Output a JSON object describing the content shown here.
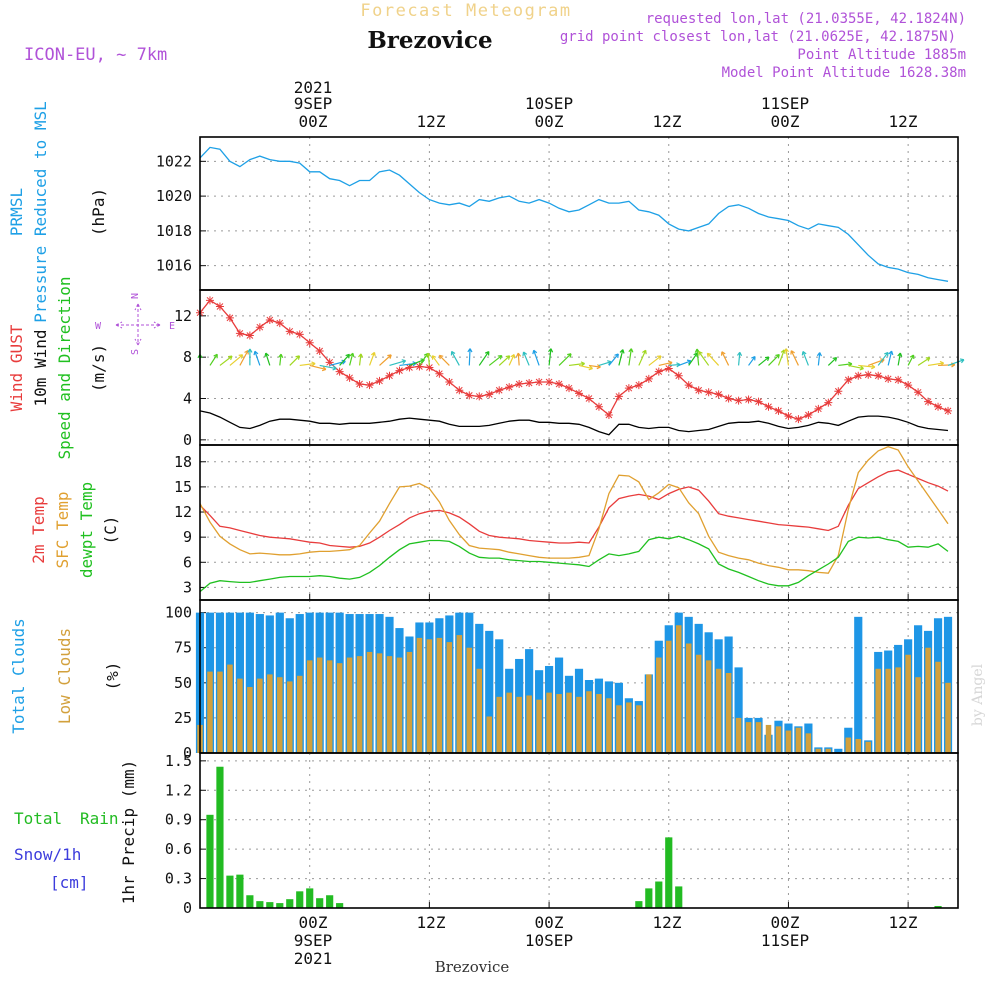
{
  "header": {
    "title_faint": "Forecast Meteogram",
    "location": "Brezovice",
    "model": "ICON-EU, ~ 7km",
    "requested": "requested lon,lat (21.0355E, 42.1824N)",
    "gridpoint": "grid point closest lon,lat (21.0625E, 42.1875N)",
    "point_alt": "Point Altitude 1885m",
    "model_alt": "Model Point Altitude 1628.38m",
    "watermark": "by Angel",
    "footer": "Brezovice"
  },
  "time_axis": {
    "ticks": [
      {
        "t": 0,
        "top": [
          "2021",
          "9SEP",
          "00Z"
        ],
        "bottom": [
          "00Z",
          "9SEP",
          "2021"
        ]
      },
      {
        "t": 12,
        "top": [
          "12Z"
        ],
        "bottom": [
          "12Z"
        ]
      },
      {
        "t": 24,
        "top": [
          "10SEP",
          "00Z"
        ],
        "bottom": [
          "00Z",
          "10SEP"
        ]
      },
      {
        "t": 36,
        "top": [
          "12Z"
        ],
        "bottom": [
          "12Z"
        ]
      },
      {
        "t": 48,
        "top": [
          "11SEP",
          "00Z"
        ],
        "bottom": [
          "00Z",
          "11SEP"
        ]
      },
      {
        "t": 60,
        "top": [
          "12Z"
        ],
        "bottom": [
          "12Z"
        ]
      }
    ]
  },
  "panels": [
    {
      "key": "pressure",
      "yticks": [
        "1022",
        "1020",
        "1018",
        "1016"
      ],
      "labels": [
        "PRMSL",
        "Pressure Reduced to MSL",
        "(hPa)"
      ]
    },
    {
      "key": "wind",
      "yticks": [
        "12",
        "8",
        "4",
        "0"
      ],
      "labels": [
        "Wind GUST",
        "10m Wind",
        "Speed and Direction",
        "(m/s)"
      ],
      "compass": {
        "n": "N",
        "s": "S",
        "w": "W",
        "e": "E"
      }
    },
    {
      "key": "temp",
      "yticks": [
        "18",
        "15",
        "12",
        "9",
        "6",
        "3"
      ],
      "labels": [
        "2m Temp",
        "SFC Temp",
        "dewpt Temp",
        "(C)"
      ]
    },
    {
      "key": "clouds",
      "yticks": [
        "100",
        "75",
        "50",
        "25",
        "0"
      ],
      "labels": [
        "Total Clouds",
        "Low Clouds",
        "(%)"
      ]
    },
    {
      "key": "precip",
      "yticks": [
        "1.5",
        "1.2",
        "0.9",
        "0.6",
        "0.3",
        "0"
      ],
      "labels": [
        "Total",
        "Rain",
        "Snow/1h",
        "[cm]",
        "1hr Precip (mm)"
      ]
    }
  ],
  "chart_data": [
    {
      "type": "line",
      "title": "PRMSL Pressure Reduced to MSL",
      "ylabel": "(hPa)",
      "ylim": [
        1014.6,
        1023.4
      ],
      "xlim": [
        -11,
        65
      ],
      "x": [
        -11,
        -10,
        -9,
        -8,
        -7,
        -6,
        -5,
        -4,
        -3,
        -2,
        -1,
        0,
        1,
        2,
        3,
        4,
        5,
        6,
        7,
        8,
        9,
        10,
        11,
        12,
        13,
        14,
        15,
        16,
        17,
        18,
        19,
        20,
        21,
        22,
        23,
        24,
        25,
        26,
        27,
        28,
        29,
        30,
        31,
        32,
        33,
        34,
        35,
        36,
        37,
        38,
        39,
        40,
        41,
        42,
        43,
        44,
        45,
        46,
        47,
        48,
        49,
        50,
        51,
        52,
        53,
        54,
        55,
        56,
        57,
        58,
        59,
        60,
        61,
        62,
        63,
        64
      ],
      "series": [
        {
          "name": "PRMSL",
          "color": "#1ea0e6",
          "values": [
            1022.2,
            1022.8,
            1022.7,
            1022.0,
            1021.7,
            1022.1,
            1022.3,
            1022.1,
            1022.0,
            1022.0,
            1021.9,
            1021.4,
            1021.4,
            1021.0,
            1020.9,
            1020.6,
            1020.9,
            1020.9,
            1021.4,
            1021.5,
            1021.2,
            1020.7,
            1020.2,
            1019.8,
            1019.6,
            1019.5,
            1019.6,
            1019.4,
            1019.8,
            1019.7,
            1019.9,
            1020.0,
            1019.7,
            1019.6,
            1019.8,
            1019.6,
            1019.3,
            1019.1,
            1019.2,
            1019.5,
            1019.8,
            1019.6,
            1019.6,
            1019.7,
            1019.2,
            1019.1,
            1018.9,
            1018.4,
            1018.1,
            1018.0,
            1018.2,
            1018.4,
            1019.0,
            1019.4,
            1019.5,
            1019.3,
            1019.0,
            1018.8,
            1018.7,
            1018.6,
            1018.3,
            1018.1,
            1018.4,
            1018.3,
            1018.2,
            1017.8,
            1017.2,
            1016.6,
            1016.1,
            1015.9,
            1015.8,
            1015.6,
            1015.5,
            1015.3,
            1015.2,
            1015.1
          ]
        }
      ]
    },
    {
      "type": "line",
      "title": "Wind GUST / 10m Wind Speed and Direction",
      "ylabel": "(m/s)",
      "ylim": [
        -0.5,
        14.5
      ],
      "xlim": [
        -11,
        65
      ],
      "x": [
        -11,
        -10,
        -9,
        -8,
        -7,
        -6,
        -5,
        -4,
        -3,
        -2,
        -1,
        0,
        1,
        2,
        3,
        4,
        5,
        6,
        7,
        8,
        9,
        10,
        11,
        12,
        13,
        14,
        15,
        16,
        17,
        18,
        19,
        20,
        21,
        22,
        23,
        24,
        25,
        26,
        27,
        28,
        29,
        30,
        31,
        32,
        33,
        34,
        35,
        36,
        37,
        38,
        39,
        40,
        41,
        42,
        43,
        44,
        45,
        46,
        47,
        48,
        49,
        50,
        51,
        52,
        53,
        54,
        55,
        56,
        57,
        58,
        59,
        60,
        61,
        62,
        63,
        64
      ],
      "series": [
        {
          "name": "Wind GUST",
          "color": "#e83c3c",
          "values": [
            12.3,
            13.5,
            12.9,
            11.8,
            10.3,
            10.1,
            10.9,
            11.6,
            11.3,
            10.5,
            10.2,
            9.4,
            8.6,
            7.5,
            6.6,
            6.0,
            5.4,
            5.3,
            5.7,
            6.2,
            6.7,
            7.0,
            7.1,
            7.0,
            6.4,
            5.6,
            4.8,
            4.3,
            4.2,
            4.4,
            4.8,
            5.1,
            5.4,
            5.5,
            5.6,
            5.6,
            5.4,
            5.0,
            4.5,
            4.0,
            3.2,
            2.4,
            4.2,
            5.0,
            5.3,
            5.9,
            6.6,
            6.9,
            6.2,
            5.3,
            4.8,
            4.6,
            4.4,
            4.0,
            3.8,
            3.9,
            3.7,
            3.2,
            2.8,
            2.3,
            2.0,
            2.4,
            3.0,
            3.6,
            4.7,
            5.8,
            6.2,
            6.3,
            6.2,
            5.9,
            5.8,
            5.3,
            4.6,
            3.7,
            3.2,
            2.8
          ]
        },
        {
          "name": "10m Wind",
          "color": "#000000",
          "values": [
            2.8,
            2.6,
            2.2,
            1.7,
            1.2,
            1.1,
            1.4,
            1.8,
            2.0,
            2.0,
            1.9,
            1.8,
            1.6,
            1.6,
            1.5,
            1.6,
            1.6,
            1.6,
            1.7,
            1.8,
            2.0,
            2.1,
            2.0,
            1.9,
            1.8,
            1.5,
            1.3,
            1.3,
            1.3,
            1.4,
            1.6,
            1.8,
            1.9,
            1.9,
            1.7,
            1.7,
            1.6,
            1.6,
            1.5,
            1.2,
            0.8,
            0.5,
            1.5,
            1.5,
            1.2,
            1.1,
            1.2,
            1.2,
            0.9,
            0.8,
            0.9,
            1.0,
            1.3,
            1.6,
            1.7,
            1.7,
            1.8,
            1.6,
            1.3,
            1.1,
            1.2,
            1.4,
            1.7,
            1.6,
            1.4,
            1.8,
            2.2,
            2.3,
            2.3,
            2.2,
            2.0,
            1.7,
            1.3,
            1.1,
            1.0,
            0.9
          ]
        }
      ]
    },
    {
      "type": "line",
      "title": "2m Temp / SFC Temp / dewpt Temp",
      "ylabel": "(C)",
      "ylim": [
        1.5,
        20
      ],
      "xlim": [
        -11,
        65
      ],
      "x": [
        -11,
        -10,
        -9,
        -8,
        -7,
        -6,
        -5,
        -4,
        -3,
        -2,
        -1,
        0,
        1,
        2,
        3,
        4,
        5,
        6,
        7,
        8,
        9,
        10,
        11,
        12,
        13,
        14,
        15,
        16,
        17,
        18,
        19,
        20,
        21,
        22,
        23,
        24,
        25,
        26,
        27,
        28,
        29,
        30,
        31,
        32,
        33,
        34,
        35,
        36,
        37,
        38,
        39,
        40,
        41,
        42,
        43,
        44,
        45,
        46,
        47,
        48,
        49,
        50,
        51,
        52,
        53,
        54,
        55,
        56,
        57,
        58,
        59,
        60,
        61,
        62,
        63,
        64
      ],
      "series": [
        {
          "name": "2m Temp",
          "color": "#e83c3c",
          "values": [
            12.8,
            11.6,
            10.3,
            10.1,
            9.8,
            9.5,
            9.2,
            9.0,
            8.9,
            8.8,
            8.6,
            8.4,
            8.3,
            8.0,
            7.9,
            7.8,
            7.9,
            8.3,
            9.0,
            9.8,
            10.5,
            11.3,
            11.8,
            12.1,
            12.2,
            11.9,
            11.4,
            10.6,
            9.7,
            9.2,
            9.0,
            8.9,
            8.8,
            8.6,
            8.5,
            8.4,
            8.3,
            8.3,
            8.4,
            8.3,
            10.2,
            12.5,
            13.6,
            13.9,
            14.1,
            13.9,
            13.5,
            14.2,
            14.7,
            15.0,
            14.6,
            13.3,
            11.8,
            11.5,
            11.3,
            11.1,
            10.9,
            10.7,
            10.5,
            10.4,
            10.3,
            10.2,
            10.0,
            9.8,
            10.3,
            12.8,
            14.8,
            15.5,
            16.2,
            16.8,
            17.0,
            16.5,
            16.0,
            15.5,
            15.1,
            14.5
          ]
        },
        {
          "name": "SFC Temp",
          "color": "#e0a030",
          "values": [
            13.0,
            10.8,
            9.1,
            8.2,
            7.5,
            7.0,
            7.1,
            7.0,
            6.9,
            6.9,
            7.0,
            7.2,
            7.3,
            7.3,
            7.4,
            7.5,
            8.0,
            9.5,
            10.9,
            13.0,
            15.0,
            15.1,
            15.4,
            14.8,
            13.2,
            11.0,
            9.3,
            8.0,
            7.7,
            7.6,
            7.5,
            7.2,
            7.0,
            6.8,
            6.6,
            6.5,
            6.5,
            6.5,
            6.6,
            6.8,
            10.0,
            14.2,
            16.4,
            16.3,
            15.6,
            13.5,
            14.3,
            15.3,
            14.9,
            13.1,
            11.8,
            9.1,
            7.2,
            6.8,
            6.5,
            6.3,
            5.9,
            5.6,
            5.4,
            5.1,
            5.1,
            5.0,
            4.8,
            4.7,
            6.8,
            12.3,
            16.7,
            18.2,
            19.3,
            19.8,
            19.4,
            17.4,
            15.7,
            14.0,
            12.3,
            10.6
          ]
        },
        {
          "name": "dewpt Temp",
          "color": "#20c020",
          "values": [
            2.5,
            3.5,
            3.8,
            3.7,
            3.6,
            3.6,
            3.8,
            4.0,
            4.2,
            4.3,
            4.3,
            4.3,
            4.4,
            4.3,
            4.1,
            4.0,
            4.2,
            4.8,
            5.6,
            6.6,
            7.5,
            8.2,
            8.4,
            8.6,
            8.6,
            8.5,
            7.9,
            7.1,
            6.6,
            6.5,
            6.5,
            6.3,
            6.2,
            6.1,
            6.1,
            6.0,
            5.9,
            5.8,
            5.7,
            5.5,
            6.3,
            7.0,
            6.8,
            7.0,
            7.3,
            8.7,
            9.0,
            8.8,
            9.1,
            8.7,
            8.2,
            7.6,
            5.8,
            5.2,
            4.8,
            4.3,
            3.8,
            3.4,
            3.2,
            3.2,
            3.6,
            4.4,
            5.1,
            5.8,
            6.6,
            8.5,
            9.0,
            8.9,
            9.0,
            8.7,
            8.5,
            7.8,
            7.9,
            7.8,
            8.2,
            7.3
          ]
        }
      ]
    },
    {
      "type": "bar",
      "title": "Total Clouds / Low Clouds",
      "ylabel": "(%)",
      "ylim": [
        0,
        109
      ],
      "xlim": [
        -11,
        65
      ],
      "x": [
        -11,
        -10,
        -9,
        -8,
        -7,
        -6,
        -5,
        -4,
        -3,
        -2,
        -1,
        0,
        1,
        2,
        3,
        4,
        5,
        6,
        7,
        8,
        9,
        10,
        11,
        12,
        13,
        14,
        15,
        16,
        17,
        18,
        19,
        20,
        21,
        22,
        23,
        24,
        25,
        26,
        27,
        28,
        29,
        30,
        31,
        32,
        33,
        34,
        35,
        36,
        37,
        38,
        39,
        40,
        41,
        42,
        43,
        44,
        45,
        46,
        47,
        48,
        49,
        50,
        51,
        52,
        53,
        54,
        55,
        56,
        57,
        58,
        59,
        60,
        61,
        62,
        63,
        64
      ],
      "series": [
        {
          "name": "Total Clouds",
          "color": "#1e96e6",
          "values": [
            100,
            100,
            100,
            100,
            100,
            100,
            99,
            98,
            100,
            96,
            99,
            100,
            100,
            100,
            100,
            99,
            99,
            99,
            99,
            97,
            89,
            83,
            93,
            93,
            96,
            98,
            100,
            100,
            92,
            87,
            81,
            60,
            67,
            74,
            59,
            62,
            68,
            55,
            60,
            52,
            53,
            51,
            50,
            39,
            37,
            56,
            80,
            91,
            100,
            97,
            92,
            86,
            81,
            83,
            61,
            25,
            25,
            13,
            23,
            21,
            19,
            21,
            4,
            4,
            3,
            18,
            97,
            9,
            72,
            73,
            77,
            81,
            91,
            87,
            96,
            97
          ]
        },
        {
          "name": "Low Clouds",
          "color": "#d2a03c",
          "values": [
            20,
            58,
            58,
            63,
            53,
            47,
            53,
            56,
            54,
            51,
            55,
            66,
            68,
            66,
            64,
            68,
            69,
            72,
            71,
            69,
            68,
            72,
            82,
            81,
            82,
            79,
            84,
            75,
            60,
            26,
            40,
            43,
            40,
            41,
            38,
            43,
            42,
            43,
            40,
            44,
            42,
            39,
            34,
            36,
            34,
            56,
            68,
            80,
            91,
            78,
            70,
            66,
            60,
            57,
            25,
            22,
            22,
            20,
            19,
            16,
            18,
            14,
            3,
            3,
            0,
            11,
            10,
            8,
            60,
            60,
            61,
            70,
            54,
            75,
            65,
            50
          ]
        }
      ]
    },
    {
      "type": "bar",
      "title": "1hr Precip (mm)",
      "ylabel": "1hr Precip (mm)",
      "ylim": [
        0,
        1.58
      ],
      "xlim": [
        -11,
        65
      ],
      "x": [
        -10,
        -9,
        -8,
        -7,
        -6,
        -5,
        -4,
        -3,
        -2,
        -1,
        0,
        1,
        2,
        3,
        33,
        34,
        35,
        36,
        37,
        63
      ],
      "series": [
        {
          "name": "Total Rain",
          "color": "#22bb22",
          "values": [
            0.95,
            1.44,
            0.33,
            0.34,
            0.13,
            0.07,
            0.06,
            0.05,
            0.09,
            0.17,
            0.2,
            0.1,
            0.13,
            0.05,
            0.07,
            0.2,
            0.27,
            0.72,
            0.22,
            0.02
          ]
        }
      ]
    }
  ]
}
